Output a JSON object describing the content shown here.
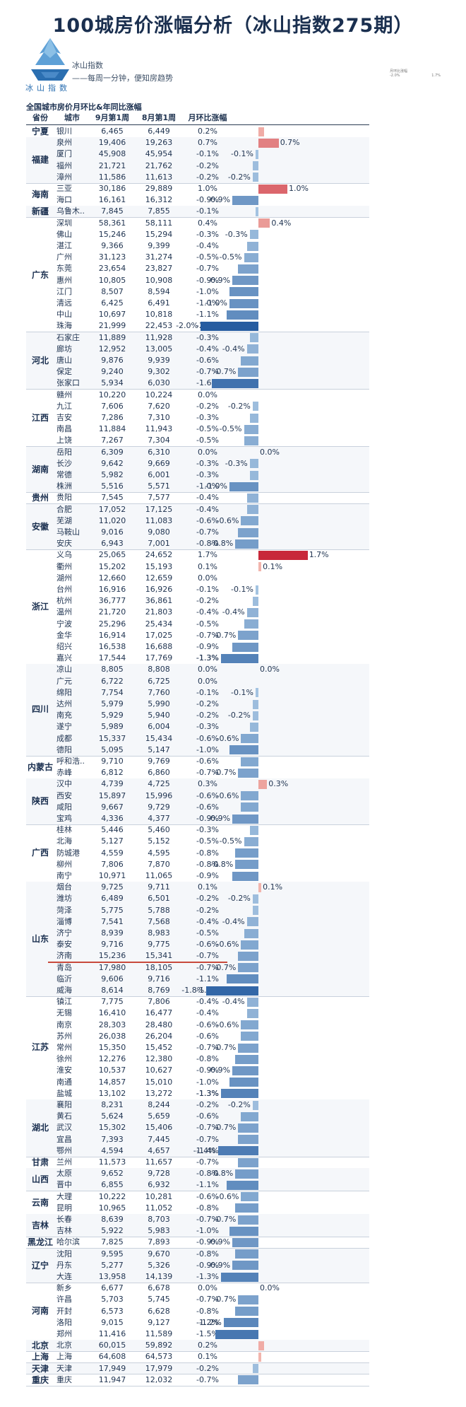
{
  "title": "100城房价涨幅分析（冰山指数275期）",
  "logo": {
    "brand": "冰山指数",
    "line1": "冰山指数",
    "line2": "——每周一分钟，便知房趋势",
    "icon": "iceberg-logo-icon"
  },
  "legend": {
    "title": "月环比涨幅",
    "min": "-2.0%",
    "max": "1.7%"
  },
  "subtitle": "全国城市房价月环比&年同比涨幅",
  "table_headers": [
    "省份",
    "城市",
    "9月第1周",
    "8月第1周",
    "月环比涨幅"
  ],
  "chart_data": {
    "type": "bar",
    "title": "全国城市房价月环比&年同比涨幅",
    "columns": [
      "省份",
      "城市",
      "9月第1周",
      "8月第1周",
      "月环比涨幅"
    ],
    "highlight_row": 73,
    "rows": [
      {
        "province": "宁夏",
        "city": "银川",
        "sep": "6,465",
        "aug": "6,449",
        "mom": 0.2,
        "label": "0.2%"
      },
      {
        "province": "福建",
        "city": "泉州",
        "sep": "19,406",
        "aug": "19,263",
        "mom": 0.7,
        "label": "0.7%"
      },
      {
        "province": "福建",
        "city": "厦门",
        "sep": "45,908",
        "aug": "45,954",
        "mom": -0.1,
        "label": "-0.1%"
      },
      {
        "province": "福建",
        "city": "福州",
        "sep": "21,721",
        "aug": "21,762",
        "mom": -0.2,
        "label": "-0.2%"
      },
      {
        "province": "福建",
        "city": "漳州",
        "sep": "11,586",
        "aug": "11,613",
        "mom": -0.2,
        "label": "-0.2%"
      },
      {
        "province": "海南",
        "city": "三亚",
        "sep": "30,186",
        "aug": "29,889",
        "mom": 1.0,
        "label": "1.0%"
      },
      {
        "province": "海南",
        "city": "海口",
        "sep": "16,161",
        "aug": "16,312",
        "mom": -0.9,
        "label": "-0.9%"
      },
      {
        "province": "新疆",
        "city": "乌鲁木..",
        "sep": "7,845",
        "aug": "7,855",
        "mom": -0.1,
        "label": "-0.1%"
      },
      {
        "province": "广东",
        "city": "深圳",
        "sep": "58,361",
        "aug": "58,111",
        "mom": 0.4,
        "label": "0.4%"
      },
      {
        "province": "广东",
        "city": "佛山",
        "sep": "15,246",
        "aug": "15,294",
        "mom": -0.3,
        "label": "-0.3%"
      },
      {
        "province": "广东",
        "city": "湛江",
        "sep": "9,366",
        "aug": "9,399",
        "mom": -0.4,
        "label": "-0.4%"
      },
      {
        "province": "广东",
        "city": "广州",
        "sep": "31,123",
        "aug": "31,274",
        "mom": -0.5,
        "label": "-0.5%"
      },
      {
        "province": "广东",
        "city": "东莞",
        "sep": "23,654",
        "aug": "23,827",
        "mom": -0.7,
        "label": "-0.7%"
      },
      {
        "province": "广东",
        "city": "惠州",
        "sep": "10,805",
        "aug": "10,908",
        "mom": -0.9,
        "label": "-0.9%"
      },
      {
        "province": "广东",
        "city": "江门",
        "sep": "8,507",
        "aug": "8,594",
        "mom": -1.0,
        "label": "-1.0%"
      },
      {
        "province": "广东",
        "city": "清远",
        "sep": "6,425",
        "aug": "6,491",
        "mom": -1.0,
        "label": "-1.0%"
      },
      {
        "province": "广东",
        "city": "中山",
        "sep": "10,697",
        "aug": "10,818",
        "mom": -1.1,
        "label": "-1.1%"
      },
      {
        "province": "广东",
        "city": "珠海",
        "sep": "21,999",
        "aug": "22,453",
        "mom": -2.0,
        "label": "-2.0%"
      },
      {
        "province": "河北",
        "city": "石家庄",
        "sep": "11,889",
        "aug": "11,928",
        "mom": -0.3,
        "label": "-0.3%"
      },
      {
        "province": "河北",
        "city": "廊坊",
        "sep": "12,952",
        "aug": "13,005",
        "mom": -0.4,
        "label": "-0.4%"
      },
      {
        "province": "河北",
        "city": "唐山",
        "sep": "9,876",
        "aug": "9,939",
        "mom": -0.6,
        "label": "-0.6%"
      },
      {
        "province": "河北",
        "city": "保定",
        "sep": "9,240",
        "aug": "9,302",
        "mom": -0.7,
        "label": "-0.7%"
      },
      {
        "province": "河北",
        "city": "张家口",
        "sep": "5,934",
        "aug": "6,030",
        "mom": -1.6,
        "label": "-1.6%"
      },
      {
        "province": "江西",
        "city": "赣州",
        "sep": "10,220",
        "aug": "10,224",
        "mom": 0.0,
        "label": "0.0%"
      },
      {
        "province": "江西",
        "city": "九江",
        "sep": "7,606",
        "aug": "7,620",
        "mom": -0.2,
        "label": "-0.2%"
      },
      {
        "province": "江西",
        "city": "吉安",
        "sep": "7,286",
        "aug": "7,310",
        "mom": -0.3,
        "label": "-0.3%"
      },
      {
        "province": "江西",
        "city": "南昌",
        "sep": "11,884",
        "aug": "11,943",
        "mom": -0.5,
        "label": "-0.5%"
      },
      {
        "province": "江西",
        "city": "上饶",
        "sep": "7,267",
        "aug": "7,304",
        "mom": -0.5,
        "label": "-0.5%"
      },
      {
        "province": "湖南",
        "city": "岳阳",
        "sep": "6,309",
        "aug": "6,310",
        "mom": 0.0,
        "label": "0.0%"
      },
      {
        "province": "湖南",
        "city": "长沙",
        "sep": "9,642",
        "aug": "9,669",
        "mom": -0.3,
        "label": "-0.3%"
      },
      {
        "province": "湖南",
        "city": "常德",
        "sep": "5,982",
        "aug": "6,001",
        "mom": -0.3,
        "label": "-0.3%"
      },
      {
        "province": "湖南",
        "city": "株洲",
        "sep": "5,516",
        "aug": "5,571",
        "mom": -1.0,
        "label": "-1.0%"
      },
      {
        "province": "贵州",
        "city": "贵阳",
        "sep": "7,545",
        "aug": "7,577",
        "mom": -0.4,
        "label": "-0.4%"
      },
      {
        "province": "安徽",
        "city": "合肥",
        "sep": "17,052",
        "aug": "17,125",
        "mom": -0.4,
        "label": "-0.4%"
      },
      {
        "province": "安徽",
        "city": "芜湖",
        "sep": "11,020",
        "aug": "11,083",
        "mom": -0.6,
        "label": "-0.6%"
      },
      {
        "province": "安徽",
        "city": "马鞍山",
        "sep": "9,016",
        "aug": "9,080",
        "mom": -0.7,
        "label": "-0.7%"
      },
      {
        "province": "安徽",
        "city": "安庆",
        "sep": "6,943",
        "aug": "7,001",
        "mom": -0.8,
        "label": "-0.8%"
      },
      {
        "province": "浙江",
        "city": "义乌",
        "sep": "25,065",
        "aug": "24,652",
        "mom": 1.7,
        "label": "1.7%"
      },
      {
        "province": "浙江",
        "city": "衢州",
        "sep": "15,202",
        "aug": "15,193",
        "mom": 0.1,
        "label": "0.1%"
      },
      {
        "province": "浙江",
        "city": "湖州",
        "sep": "12,660",
        "aug": "12,659",
        "mom": 0.0,
        "label": "0.0%"
      },
      {
        "province": "浙江",
        "city": "台州",
        "sep": "16,916",
        "aug": "16,926",
        "mom": -0.1,
        "label": "-0.1%"
      },
      {
        "province": "浙江",
        "city": "杭州",
        "sep": "36,777",
        "aug": "36,861",
        "mom": -0.2,
        "label": "-0.2%"
      },
      {
        "province": "浙江",
        "city": "温州",
        "sep": "21,720",
        "aug": "21,803",
        "mom": -0.4,
        "label": "-0.4%"
      },
      {
        "province": "浙江",
        "city": "宁波",
        "sep": "25,296",
        "aug": "25,434",
        "mom": -0.5,
        "label": "-0.5%"
      },
      {
        "province": "浙江",
        "city": "金华",
        "sep": "16,914",
        "aug": "17,025",
        "mom": -0.7,
        "label": "-0.7%"
      },
      {
        "province": "浙江",
        "city": "绍兴",
        "sep": "16,538",
        "aug": "16,688",
        "mom": -0.9,
        "label": "-0.9%"
      },
      {
        "province": "浙江",
        "city": "嘉兴",
        "sep": "17,544",
        "aug": "17,769",
        "mom": -1.3,
        "label": "-1.3%"
      },
      {
        "province": "四川",
        "city": "凉山",
        "sep": "8,805",
        "aug": "8,808",
        "mom": 0.0,
        "label": "0.0%"
      },
      {
        "province": "四川",
        "city": "广元",
        "sep": "6,722",
        "aug": "6,725",
        "mom": 0.0,
        "label": "0.0%"
      },
      {
        "province": "四川",
        "city": "绵阳",
        "sep": "7,754",
        "aug": "7,760",
        "mom": -0.1,
        "label": "-0.1%"
      },
      {
        "province": "四川",
        "city": "达州",
        "sep": "5,979",
        "aug": "5,990",
        "mom": -0.2,
        "label": "-0.2%"
      },
      {
        "province": "四川",
        "city": "南充",
        "sep": "5,929",
        "aug": "5,940",
        "mom": -0.2,
        "label": "-0.2%"
      },
      {
        "province": "四川",
        "city": "遂宁",
        "sep": "5,989",
        "aug": "6,004",
        "mom": -0.3,
        "label": "-0.3%"
      },
      {
        "province": "四川",
        "city": "成都",
        "sep": "15,337",
        "aug": "15,434",
        "mom": -0.6,
        "label": "-0.6%"
      },
      {
        "province": "四川",
        "city": "德阳",
        "sep": "5,095",
        "aug": "5,147",
        "mom": -1.0,
        "label": "-1.0%"
      },
      {
        "province": "内蒙古",
        "city": "呼和浩..",
        "sep": "9,710",
        "aug": "9,769",
        "mom": -0.6,
        "label": "-0.6%"
      },
      {
        "province": "内蒙古",
        "city": "赤峰",
        "sep": "6,812",
        "aug": "6,860",
        "mom": -0.7,
        "label": "-0.7%"
      },
      {
        "province": "陕西",
        "city": "汉中",
        "sep": "4,739",
        "aug": "4,725",
        "mom": 0.3,
        "label": "0.3%"
      },
      {
        "province": "陕西",
        "city": "西安",
        "sep": "15,897",
        "aug": "15,996",
        "mom": -0.6,
        "label": "-0.6%"
      },
      {
        "province": "陕西",
        "city": "咸阳",
        "sep": "9,667",
        "aug": "9,729",
        "mom": -0.6,
        "label": "-0.6%"
      },
      {
        "province": "陕西",
        "city": "宝鸡",
        "sep": "4,336",
        "aug": "4,377",
        "mom": -0.9,
        "label": "-0.9%"
      },
      {
        "province": "广西",
        "city": "桂林",
        "sep": "5,446",
        "aug": "5,460",
        "mom": -0.3,
        "label": "-0.3%"
      },
      {
        "province": "广西",
        "city": "北海",
        "sep": "5,127",
        "aug": "5,152",
        "mom": -0.5,
        "label": "-0.5%"
      },
      {
        "province": "广西",
        "city": "防城港",
        "sep": "4,559",
        "aug": "4,595",
        "mom": -0.8,
        "label": "-0.8%"
      },
      {
        "province": "广西",
        "city": "柳州",
        "sep": "7,806",
        "aug": "7,870",
        "mom": -0.8,
        "label": "-0.8%"
      },
      {
        "province": "广西",
        "city": "南宁",
        "sep": "10,971",
        "aug": "11,065",
        "mom": -0.9,
        "label": "-0.9%"
      },
      {
        "province": "山东",
        "city": "烟台",
        "sep": "9,725",
        "aug": "9,711",
        "mom": 0.1,
        "label": "0.1%"
      },
      {
        "province": "山东",
        "city": "潍坊",
        "sep": "6,489",
        "aug": "6,501",
        "mom": -0.2,
        "label": "-0.2%"
      },
      {
        "province": "山东",
        "city": "菏泽",
        "sep": "5,775",
        "aug": "5,788",
        "mom": -0.2,
        "label": "-0.2%"
      },
      {
        "province": "山东",
        "city": "淄博",
        "sep": "7,541",
        "aug": "7,568",
        "mom": -0.4,
        "label": "-0.4%"
      },
      {
        "province": "山东",
        "city": "济宁",
        "sep": "8,939",
        "aug": "8,983",
        "mom": -0.5,
        "label": "-0.5%"
      },
      {
        "province": "山东",
        "city": "泰安",
        "sep": "9,716",
        "aug": "9,775",
        "mom": -0.6,
        "label": "-0.6%"
      },
      {
        "province": "山东",
        "city": "济南",
        "sep": "15,236",
        "aug": "15,341",
        "mom": -0.7,
        "label": "-0.7%"
      },
      {
        "province": "山东",
        "city": "青岛",
        "sep": "17,980",
        "aug": "18,105",
        "mom": -0.7,
        "label": "-0.7%"
      },
      {
        "province": "山东",
        "city": "临沂",
        "sep": "9,606",
        "aug": "9,716",
        "mom": -1.1,
        "label": "-1.1%"
      },
      {
        "province": "山东",
        "city": "威海",
        "sep": "8,614",
        "aug": "8,769",
        "mom": -1.8,
        "label": "-1.8%"
      },
      {
        "province": "江苏",
        "city": "镇江",
        "sep": "7,775",
        "aug": "7,806",
        "mom": -0.4,
        "label": "-0.4%"
      },
      {
        "province": "江苏",
        "city": "无锡",
        "sep": "16,410",
        "aug": "16,477",
        "mom": -0.4,
        "label": "-0.4%"
      },
      {
        "province": "江苏",
        "city": "南京",
        "sep": "28,303",
        "aug": "28,480",
        "mom": -0.6,
        "label": "-0.6%"
      },
      {
        "province": "江苏",
        "city": "苏州",
        "sep": "26,038",
        "aug": "26,204",
        "mom": -0.6,
        "label": "-0.6%"
      },
      {
        "province": "江苏",
        "city": "常州",
        "sep": "15,350",
        "aug": "15,452",
        "mom": -0.7,
        "label": "-0.7%"
      },
      {
        "province": "江苏",
        "city": "徐州",
        "sep": "12,276",
        "aug": "12,380",
        "mom": -0.8,
        "label": "-0.8%"
      },
      {
        "province": "江苏",
        "city": "淮安",
        "sep": "10,537",
        "aug": "10,627",
        "mom": -0.9,
        "label": "-0.9%"
      },
      {
        "province": "江苏",
        "city": "南通",
        "sep": "14,857",
        "aug": "15,010",
        "mom": -1.0,
        "label": "-1.0%"
      },
      {
        "province": "江苏",
        "city": "盐城",
        "sep": "13,102",
        "aug": "13,272",
        "mom": -1.3,
        "label": "-1.3%"
      },
      {
        "province": "湖北",
        "city": "襄阳",
        "sep": "8,231",
        "aug": "8,244",
        "mom": -0.2,
        "label": "-0.2%"
      },
      {
        "province": "湖北",
        "city": "黄石",
        "sep": "5,624",
        "aug": "5,659",
        "mom": -0.6,
        "label": "-0.6%"
      },
      {
        "province": "湖北",
        "city": "武汉",
        "sep": "15,302",
        "aug": "15,406",
        "mom": -0.7,
        "label": "-0.7%"
      },
      {
        "province": "湖北",
        "city": "宜昌",
        "sep": "7,393",
        "aug": "7,445",
        "mom": -0.7,
        "label": "-0.7%"
      },
      {
        "province": "湖北",
        "city": "鄂州",
        "sep": "4,594",
        "aug": "4,657",
        "mom": -1.4,
        "label": "-1.4%"
      },
      {
        "province": "甘肃",
        "city": "兰州",
        "sep": "11,573",
        "aug": "11,657",
        "mom": -0.7,
        "label": "-0.7%"
      },
      {
        "province": "山西",
        "city": "太原",
        "sep": "9,652",
        "aug": "9,728",
        "mom": -0.8,
        "label": "-0.8%"
      },
      {
        "province": "山西",
        "city": "晋中",
        "sep": "6,855",
        "aug": "6,932",
        "mom": -1.1,
        "label": "-1.1%"
      },
      {
        "province": "云南",
        "city": "大理",
        "sep": "10,222",
        "aug": "10,281",
        "mom": -0.6,
        "label": "-0.6%"
      },
      {
        "province": "云南",
        "city": "昆明",
        "sep": "10,965",
        "aug": "11,052",
        "mom": -0.8,
        "label": "-0.8%"
      },
      {
        "province": "吉林",
        "city": "长春",
        "sep": "8,639",
        "aug": "8,703",
        "mom": -0.7,
        "label": "-0.7%"
      },
      {
        "province": "吉林",
        "city": "吉林",
        "sep": "5,922",
        "aug": "5,983",
        "mom": -1.0,
        "label": "-1.0%"
      },
      {
        "province": "黑龙江",
        "city": "哈尔滨",
        "sep": "7,825",
        "aug": "7,893",
        "mom": -0.9,
        "label": "-0.9%"
      },
      {
        "province": "辽宁",
        "city": "沈阳",
        "sep": "9,595",
        "aug": "9,670",
        "mom": -0.8,
        "label": "-0.8%"
      },
      {
        "province": "辽宁",
        "city": "丹东",
        "sep": "5,277",
        "aug": "5,326",
        "mom": -0.9,
        "label": "-0.9%"
      },
      {
        "province": "辽宁",
        "city": "大连",
        "sep": "13,958",
        "aug": "14,139",
        "mom": -1.3,
        "label": "-1.3%"
      },
      {
        "province": "河南",
        "city": "新乡",
        "sep": "6,677",
        "aug": "6,678",
        "mom": 0.0,
        "label": "0.0%"
      },
      {
        "province": "河南",
        "city": "许昌",
        "sep": "5,703",
        "aug": "5,745",
        "mom": -0.7,
        "label": "-0.7%"
      },
      {
        "province": "河南",
        "city": "开封",
        "sep": "6,573",
        "aug": "6,628",
        "mom": -0.8,
        "label": "-0.8%"
      },
      {
        "province": "河南",
        "city": "洛阳",
        "sep": "9,015",
        "aug": "9,127",
        "mom": -1.2,
        "label": "-1.2%"
      },
      {
        "province": "河南",
        "city": "郑州",
        "sep": "11,416",
        "aug": "11,589",
        "mom": -1.5,
        "label": "-1.5%"
      },
      {
        "province": "北京",
        "city": "北京",
        "sep": "60,015",
        "aug": "59,892",
        "mom": 0.2,
        "label": "0.2%"
      },
      {
        "province": "上海",
        "city": "上海",
        "sep": "64,608",
        "aug": "64,573",
        "mom": 0.1,
        "label": "0.1%"
      },
      {
        "province": "天津",
        "city": "天津",
        "sep": "17,949",
        "aug": "17,979",
        "mom": -0.2,
        "label": "-0.2%"
      },
      {
        "province": "重庆",
        "city": "重庆",
        "sep": "11,947",
        "aug": "12,032",
        "mom": -0.7,
        "label": "-0.7%"
      }
    ],
    "bar_labels_shown": [
      1,
      2,
      4,
      5,
      6,
      8,
      9,
      11,
      13,
      15,
      17,
      19,
      21,
      24,
      26,
      28,
      29,
      31,
      34,
      36,
      37,
      38,
      40,
      42,
      44,
      46,
      47,
      49,
      51,
      53,
      56,
      57,
      58,
      60,
      62,
      64,
      66,
      67,
      69,
      71,
      73,
      75,
      76,
      78,
      80,
      82,
      84,
      85,
      87,
      89,
      91,
      93,
      95,
      97,
      99,
      101,
      102,
      104
    ]
  }
}
